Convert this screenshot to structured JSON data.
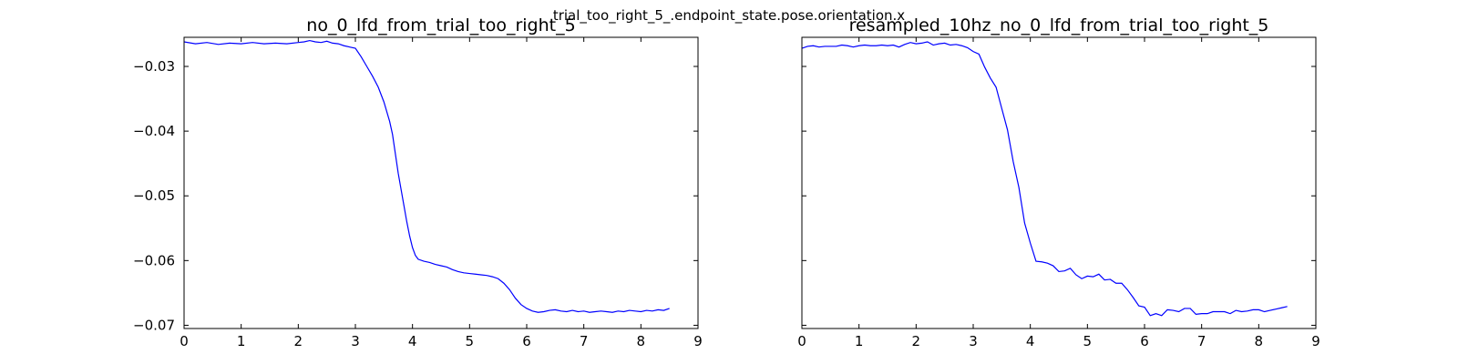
{
  "figure": {
    "suptitle": "trial_too_right_5_.endpoint_state.pose.orientation.x"
  },
  "chart_data": [
    {
      "type": "line",
      "title": "no_0_lfd_from_trial_too_right_5",
      "xlabel": "",
      "ylabel": "",
      "xlim": [
        0,
        9
      ],
      "ylim": [
        -0.0705,
        -0.0255
      ],
      "grid": false,
      "x_ticks": [
        0,
        1,
        2,
        3,
        4,
        5,
        6,
        7,
        8,
        9
      ],
      "x_tick_labels": [
        "0",
        "1",
        "2",
        "3",
        "4",
        "5",
        "6",
        "7",
        "8",
        "9"
      ],
      "y_ticks": [
        -0.03,
        -0.04,
        -0.05,
        -0.06,
        -0.07
      ],
      "y_tick_labels": [
        "−0.03",
        "−0.04",
        "−0.05",
        "−0.06",
        "−0.07"
      ],
      "color": "#0000ff",
      "series": [
        {
          "x": [
            0,
            0.2,
            0.4,
            0.6,
            0.8,
            1.0,
            1.2,
            1.4,
            1.6,
            1.8,
            2.0,
            2.1,
            2.2,
            2.3,
            2.4,
            2.5,
            2.6,
            2.7,
            2.8,
            2.9,
            3.0,
            3.1,
            3.2,
            3.3,
            3.4,
            3.5,
            3.6,
            3.65,
            3.7,
            3.75,
            3.8,
            3.85,
            3.9,
            3.95,
            4.0,
            4.05,
            4.1,
            4.2,
            4.3,
            4.4,
            4.5,
            4.6,
            4.7,
            4.8,
            4.9,
            5.0,
            5.1,
            5.2,
            5.3,
            5.4,
            5.5,
            5.6,
            5.7,
            5.8,
            5.9,
            6.0,
            6.1,
            6.2,
            6.3,
            6.4,
            6.5,
            6.6,
            6.7,
            6.8,
            6.9,
            7.0,
            7.1,
            7.2,
            7.3,
            7.4,
            7.5,
            7.6,
            7.7,
            7.8,
            7.9,
            8.0,
            8.1,
            8.2,
            8.3,
            8.4,
            8.5
          ],
          "y": [
            -0.0262,
            -0.0265,
            -0.0263,
            -0.0266,
            -0.0264,
            -0.0265,
            -0.0263,
            -0.0265,
            -0.0264,
            -0.0265,
            -0.0263,
            -0.0262,
            -0.026,
            -0.0262,
            -0.0263,
            -0.0261,
            -0.0264,
            -0.0265,
            -0.0268,
            -0.027,
            -0.0272,
            -0.0285,
            -0.03,
            -0.0315,
            -0.0332,
            -0.0355,
            -0.0385,
            -0.0405,
            -0.0435,
            -0.0465,
            -0.049,
            -0.0515,
            -0.054,
            -0.0562,
            -0.058,
            -0.0592,
            -0.0598,
            -0.0601,
            -0.0603,
            -0.0606,
            -0.0608,
            -0.061,
            -0.0614,
            -0.0617,
            -0.0619,
            -0.062,
            -0.0621,
            -0.0622,
            -0.0623,
            -0.0625,
            -0.0628,
            -0.0635,
            -0.0645,
            -0.0658,
            -0.0668,
            -0.0674,
            -0.0678,
            -0.068,
            -0.0679,
            -0.0677,
            -0.0676,
            -0.0678,
            -0.0679,
            -0.0677,
            -0.0679,
            -0.0678,
            -0.068,
            -0.0679,
            -0.0678,
            -0.0679,
            -0.068,
            -0.0678,
            -0.0679,
            -0.0677,
            -0.0678,
            -0.0679,
            -0.0677,
            -0.0678,
            -0.0676,
            -0.0677,
            -0.0674
          ]
        }
      ]
    },
    {
      "type": "line",
      "title": "resampled_10hz_no_0_lfd_from_trial_too_right_5",
      "xlabel": "",
      "ylabel": "",
      "xlim": [
        0,
        9
      ],
      "ylim": [
        -0.0705,
        -0.0255
      ],
      "grid": false,
      "x_ticks": [
        0,
        1,
        2,
        3,
        4,
        5,
        6,
        7,
        8,
        9
      ],
      "x_tick_labels": [
        "0",
        "1",
        "2",
        "3",
        "4",
        "5",
        "6",
        "7",
        "8",
        "9"
      ],
      "y_ticks": [
        -0.03,
        -0.04,
        -0.05,
        -0.06,
        -0.07
      ],
      "color": "#0000ff",
      "series": [
        {
          "x": [
            0,
            0.1,
            0.2,
            0.3,
            0.4,
            0.5,
            0.6,
            0.7,
            0.8,
            0.9,
            1.0,
            1.1,
            1.2,
            1.3,
            1.4,
            1.5,
            1.6,
            1.7,
            1.8,
            1.9,
            2.0,
            2.1,
            2.2,
            2.3,
            2.4,
            2.5,
            2.6,
            2.7,
            2.8,
            2.9,
            3.0,
            3.1,
            3.2,
            3.3,
            3.4,
            3.5,
            3.6,
            3.7,
            3.8,
            3.9,
            4.0,
            4.1,
            4.2,
            4.3,
            4.4,
            4.5,
            4.6,
            4.7,
            4.8,
            4.9,
            5.0,
            5.1,
            5.2,
            5.3,
            5.4,
            5.5,
            5.6,
            5.7,
            5.8,
            5.9,
            6.0,
            6.1,
            6.2,
            6.3,
            6.4,
            6.5,
            6.6,
            6.7,
            6.8,
            6.9,
            7.0,
            7.1,
            7.2,
            7.3,
            7.4,
            7.5,
            7.6,
            7.7,
            7.8,
            7.9,
            8.0,
            8.1,
            8.2,
            8.3,
            8.4,
            8.5
          ],
          "y": [
            -0.0272,
            -0.0269,
            -0.0268,
            -0.027,
            -0.0269,
            -0.0269,
            -0.0269,
            -0.0267,
            -0.0268,
            -0.027,
            -0.0268,
            -0.0267,
            -0.0268,
            -0.0268,
            -0.0267,
            -0.0268,
            -0.0267,
            -0.027,
            -0.0266,
            -0.0263,
            -0.0265,
            -0.0264,
            -0.0262,
            -0.0267,
            -0.0265,
            -0.0264,
            -0.0267,
            -0.0266,
            -0.0268,
            -0.0271,
            -0.0277,
            -0.0281,
            -0.0301,
            -0.0318,
            -0.0332,
            -0.0365,
            -0.0398,
            -0.0447,
            -0.0487,
            -0.0542,
            -0.0573,
            -0.0601,
            -0.0602,
            -0.0604,
            -0.0608,
            -0.0617,
            -0.0616,
            -0.0612,
            -0.0622,
            -0.0628,
            -0.0624,
            -0.0625,
            -0.0621,
            -0.063,
            -0.0629,
            -0.0635,
            -0.0635,
            -0.0645,
            -0.0657,
            -0.067,
            -0.0672,
            -0.0685,
            -0.0682,
            -0.0685,
            -0.0676,
            -0.0677,
            -0.0679,
            -0.0674,
            -0.0674,
            -0.0683,
            -0.0682,
            -0.0682,
            -0.0679,
            -0.0679,
            -0.0679,
            -0.0682,
            -0.0677,
            -0.0679,
            -0.0678,
            -0.0676,
            -0.0676,
            -0.0679,
            -0.0677,
            -0.0675,
            -0.0673,
            -0.0671
          ]
        }
      ]
    }
  ]
}
